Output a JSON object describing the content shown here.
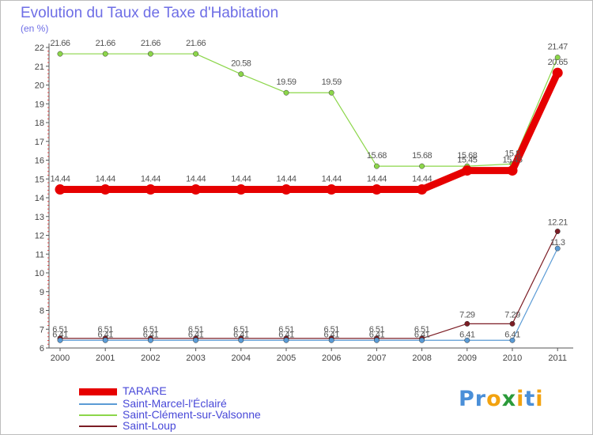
{
  "chart_data": {
    "type": "line",
    "title": "Evolution du Taux de Taxe d'Habitation",
    "ylabel": "(en %)",
    "xlabel": "",
    "ylim": [
      6,
      22
    ],
    "yticks": [
      6,
      7,
      8,
      9,
      10,
      11,
      12,
      13,
      14,
      15,
      16,
      17,
      18,
      19,
      20,
      21,
      22
    ],
    "categories": [
      "2000",
      "2001",
      "2002",
      "2003",
      "2004",
      "2005",
      "2006",
      "2007",
      "2008",
      "2009",
      "2010",
      "2011"
    ],
    "series": [
      {
        "name": "TARARE",
        "color": "#e60000",
        "values": [
          14.44,
          14.44,
          14.44,
          14.44,
          14.44,
          14.44,
          14.44,
          14.44,
          14.44,
          15.45,
          15.45,
          20.65
        ],
        "labels": [
          "14.44",
          "14.44",
          "14.44",
          "14.44",
          "14.44",
          "14.44",
          "14.44",
          "14.44",
          "14.44",
          "15.45",
          "15.45",
          "20.65"
        ]
      },
      {
        "name": "Saint-Marcel-l'Éclairé",
        "color": "#5b9bd5",
        "values": [
          6.41,
          6.41,
          6.41,
          6.41,
          6.41,
          6.41,
          6.41,
          6.41,
          6.41,
          6.41,
          6.41,
          11.3
        ],
        "labels": [
          "6.41",
          "6.41",
          "6.41",
          "6.41",
          "6.41",
          "6.41",
          "6.41",
          "6.41",
          "6.41",
          "6.41",
          "6.41",
          "11.3"
        ]
      },
      {
        "name": "Saint-Clément-sur-Valsonne",
        "color": "#8cd64a",
        "values": [
          21.66,
          21.66,
          21.66,
          21.66,
          20.58,
          19.59,
          19.59,
          15.68,
          15.68,
          15.68,
          15.8,
          21.47
        ],
        "labels": [
          "21.66",
          "21.66",
          "21.66",
          "21.66",
          "20.58",
          "19.59",
          "19.59",
          "15.68",
          "15.68",
          "15.68",
          "15.8",
          "21.47"
        ]
      },
      {
        "name": "Saint-Loup",
        "color": "#7b1c24",
        "values": [
          6.51,
          6.51,
          6.51,
          6.51,
          6.51,
          6.51,
          6.51,
          6.51,
          6.51,
          7.29,
          7.29,
          12.21
        ],
        "labels": [
          "6.51",
          "6.51",
          "6.51",
          "6.51",
          "6.51",
          "6.51",
          "6.51",
          "6.51",
          "6.51",
          "7.29",
          "7.29",
          "12.21"
        ]
      }
    ],
    "grid": false,
    "legend": "bottom-left"
  },
  "legend": {
    "items": [
      {
        "label": "TARARE"
      },
      {
        "label": "Saint-Marcel-l'Éclairé"
      },
      {
        "label": "Saint-Clément-sur-Valsonne"
      },
      {
        "label": "Saint-Loup"
      }
    ]
  },
  "logo": {
    "text": "Proxiti",
    "letters": [
      "P",
      "r",
      "o",
      "x",
      "i",
      "t",
      "i"
    ],
    "colors": [
      "#4a8fd8",
      "#4a8fd8",
      "#f2a20f",
      "#2b9a3a",
      "#f2a20f",
      "#4a8fd8",
      "#f2a20f"
    ]
  }
}
